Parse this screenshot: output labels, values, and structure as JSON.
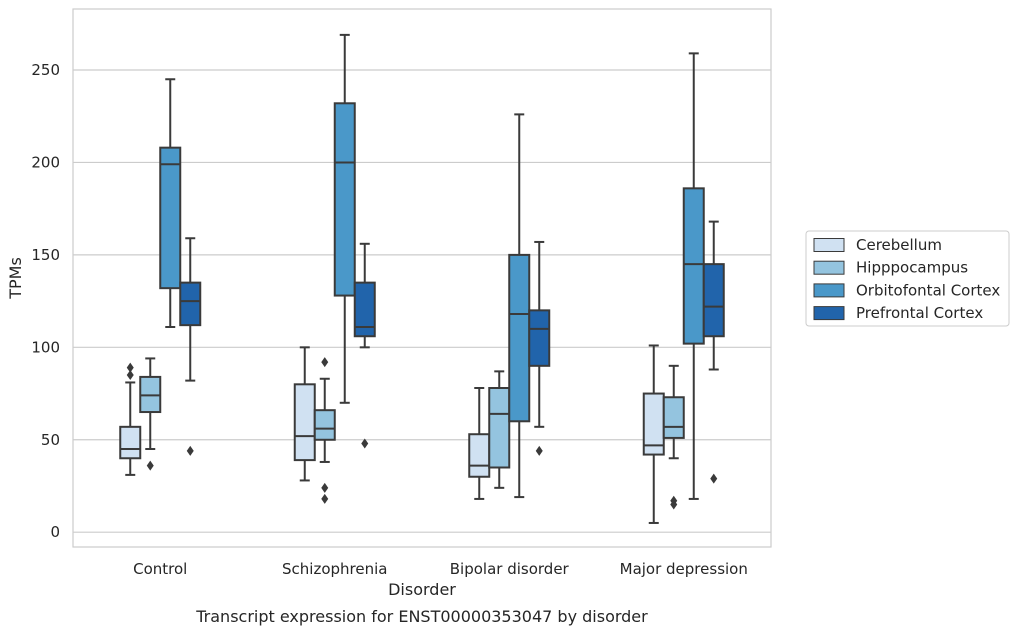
{
  "chart_data": {
    "type": "box",
    "title": "",
    "caption": "Transcript expression for ENST00000353047 by disorder",
    "xlabel": "Disorder",
    "ylabel": "TPMs",
    "ylim": [
      -8,
      283
    ],
    "yticks": [
      0,
      50,
      100,
      150,
      200,
      250
    ],
    "grid": "horizontal",
    "legend_position": "right",
    "categories": [
      "Control",
      "Schizophrenia",
      "Bipolar disorder",
      "Major depression"
    ],
    "series": [
      {
        "name": "Cerebellum",
        "color": "#d0e1f2",
        "boxes": [
          {
            "whislo": 31,
            "q1": 40,
            "med": 45,
            "q3": 57,
            "whishi": 81,
            "fliers": [
              85,
              89
            ]
          },
          {
            "whislo": 28,
            "q1": 39,
            "med": 52,
            "q3": 80,
            "whishi": 100,
            "fliers": []
          },
          {
            "whislo": 18,
            "q1": 30,
            "med": 36,
            "q3": 53,
            "whishi": 78,
            "fliers": []
          },
          {
            "whislo": 5,
            "q1": 42,
            "med": 47,
            "q3": 75,
            "whishi": 101,
            "fliers": []
          }
        ]
      },
      {
        "name": "Hipppocampus",
        "color": "#94c4df",
        "boxes": [
          {
            "whislo": 45,
            "q1": 65,
            "med": 74,
            "q3": 84,
            "whishi": 94,
            "fliers": [
              36
            ]
          },
          {
            "whislo": 38,
            "q1": 50,
            "med": 56,
            "q3": 66,
            "whishi": 83,
            "fliers": [
              92,
              24,
              18
            ]
          },
          {
            "whislo": 24,
            "q1": 35,
            "med": 64,
            "q3": 78,
            "whishi": 87,
            "fliers": []
          },
          {
            "whislo": 40,
            "q1": 51,
            "med": 57,
            "q3": 73,
            "whishi": 90,
            "fliers": [
              17,
              15
            ]
          }
        ]
      },
      {
        "name": "Orbitofontal Cortex",
        "color": "#4a98c9",
        "boxes": [
          {
            "whislo": 111,
            "q1": 132,
            "med": 199,
            "q3": 208,
            "whishi": 245,
            "fliers": []
          },
          {
            "whislo": 70,
            "q1": 128,
            "med": 200,
            "q3": 232,
            "whishi": 269,
            "fliers": []
          },
          {
            "whislo": 19,
            "q1": 60,
            "med": 118,
            "q3": 150,
            "whishi": 226,
            "fliers": []
          },
          {
            "whislo": 18,
            "q1": 102,
            "med": 145,
            "q3": 186,
            "whishi": 259,
            "fliers": []
          }
        ]
      },
      {
        "name": "Prefrontal Cortex",
        "color": "#2164ab",
        "boxes": [
          {
            "whislo": 82,
            "q1": 112,
            "med": 125,
            "q3": 135,
            "whishi": 159,
            "fliers": [
              44
            ]
          },
          {
            "whislo": 100,
            "q1": 106,
            "med": 111,
            "q3": 135,
            "whishi": 156,
            "fliers": [
              48
            ]
          },
          {
            "whislo": 57,
            "q1": 90,
            "med": 110,
            "q3": 120,
            "whishi": 157,
            "fliers": [
              44
            ]
          },
          {
            "whislo": 88,
            "q1": 106,
            "med": 122,
            "q3": 145,
            "whishi": 168,
            "fliers": [
              29
            ]
          }
        ]
      }
    ]
  }
}
